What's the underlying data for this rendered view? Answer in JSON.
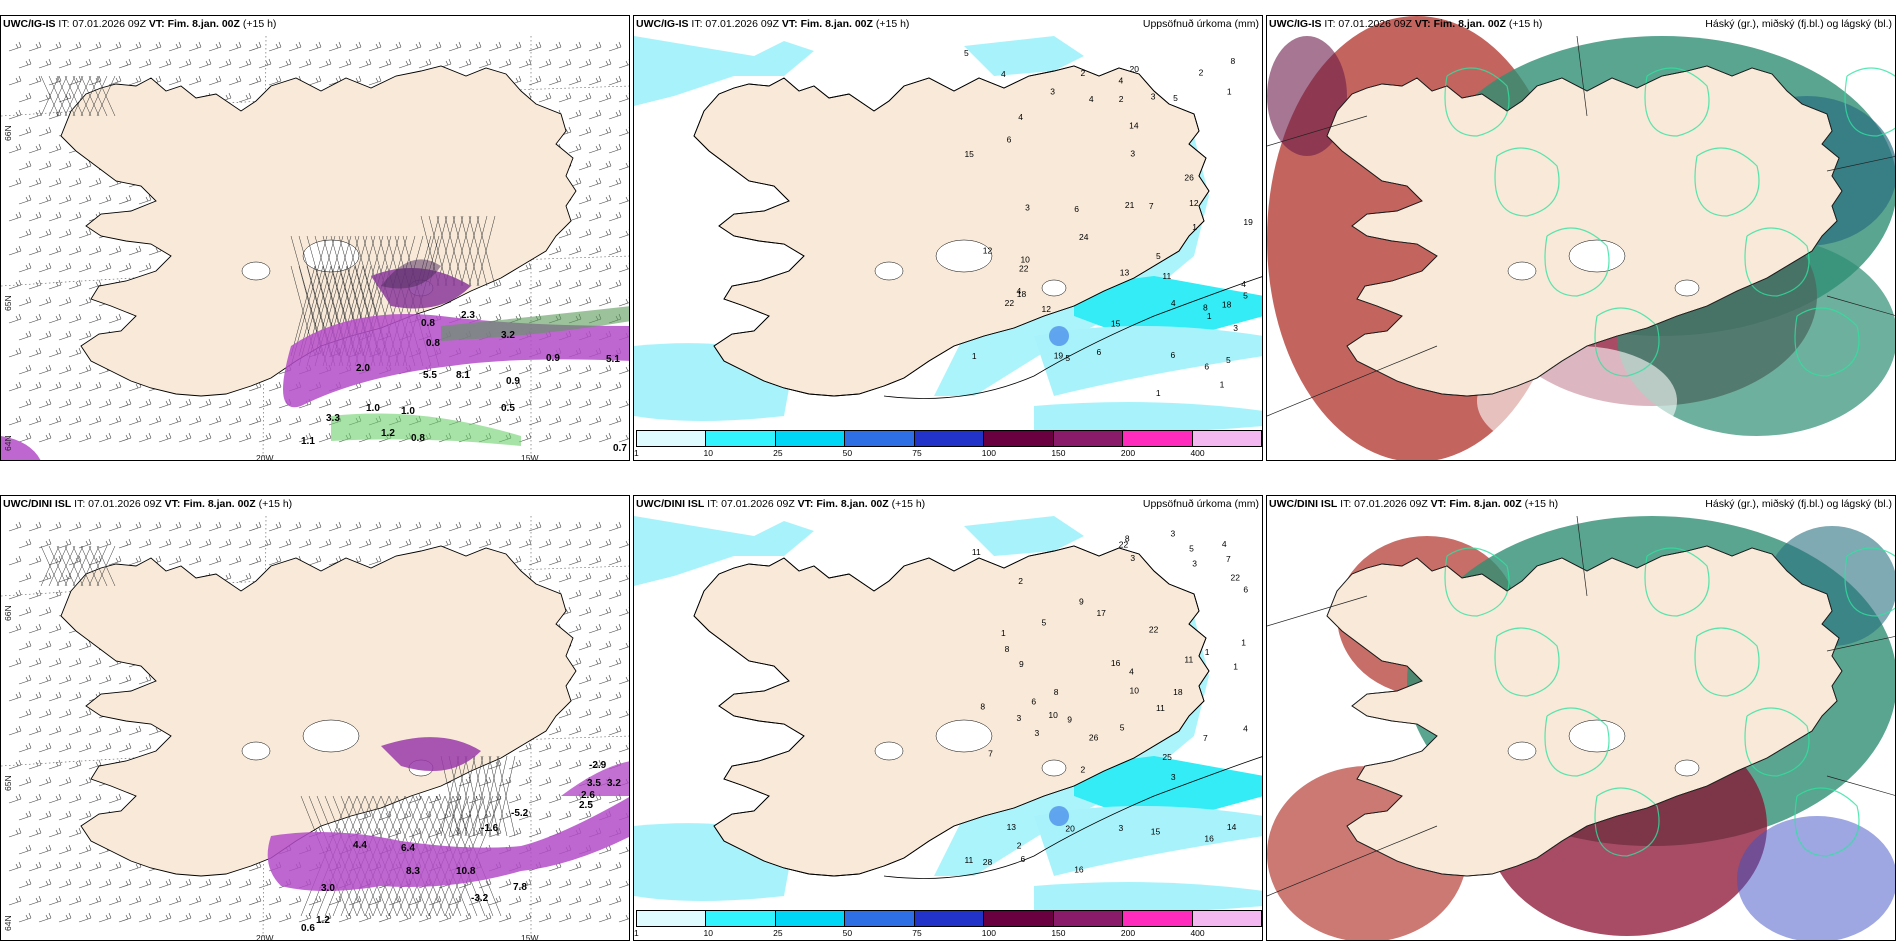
{
  "rows": [
    {
      "model": "UWC/IG-IS",
      "panels": [
        {
          "id": "wind",
          "model": "UWC/IG-IS",
          "it": "IT: 07.01.2026 09Z",
          "vt_label": "VT:",
          "vt_value": "Fim. 8.jan. 00Z",
          "lead": "(+15 h)",
          "right_title": "",
          "lat_labels": [
            "66N",
            "65N",
            "64N"
          ],
          "lon_labels": [
            "20W",
            "15W"
          ],
          "values": [
            "2.0",
            "2.3",
            "3.2",
            "5.5",
            "8.1",
            "3.3",
            "1.1",
            "0.8",
            "0.8",
            "1.0",
            "1.0",
            "0.5",
            "1.2",
            "0.8",
            "0.9",
            "0.9",
            "0.7",
            "5.1"
          ]
        },
        {
          "id": "precip",
          "model": "UWC/IG-IS",
          "it": "IT: 07.01.2026 09Z",
          "vt_label": "VT:",
          "vt_value": "Fim. 8.jan. 00Z",
          "lead": "(+15 h)",
          "right_title": "Uppsöfnuð úrkoma (mm)",
          "values": [
            "5",
            "1",
            "3",
            "1",
            "1",
            "2",
            "3",
            "4",
            "1",
            "4",
            "4",
            "4",
            "2",
            "3",
            "4",
            "3",
            "4",
            "5",
            "6",
            "12",
            "10",
            "5",
            "14",
            "18",
            "12",
            "13",
            "8",
            "19",
            "22",
            "26",
            "22",
            "18",
            "21",
            "24",
            "19",
            "20",
            "15",
            "15",
            "6",
            "5",
            "6",
            "7",
            "8",
            "5",
            "4",
            "12",
            "11",
            "2",
            "6",
            "6",
            "3",
            "1",
            "1",
            "5"
          ]
        },
        {
          "id": "cloud",
          "model": "UWC/IG-IS",
          "it": "IT: 07.01.2026 09Z",
          "vt_label": "VT:",
          "vt_value": "Fim. 8.jan. 00Z",
          "lead": "(+15 h)",
          "right_title": "Háský (gr.), miðský (fj.bl.) og lágský (bl.)"
        }
      ]
    },
    {
      "model": "UWC/DINI ISL",
      "panels": [
        {
          "id": "wind",
          "model": "UWC/DINI ISL",
          "it": "IT: 07.01.2026 09Z",
          "vt_label": "VT:",
          "vt_value": "Fim. 8.jan. 00Z",
          "lead": "(+15 h)",
          "right_title": "",
          "lat_labels": [
            "66N",
            "65N",
            "64N"
          ],
          "lon_labels": [
            "20W",
            "15W"
          ],
          "values": [
            "-2.9",
            "3.5",
            "3.2",
            "2.6",
            "2.5",
            "-5.2",
            "-1.6",
            "6.4",
            "8.3",
            "10.8",
            "4.4",
            "7.8",
            "3.0",
            "-3.2",
            "1.2",
            "0.6"
          ]
        },
        {
          "id": "precip",
          "model": "UWC/DINI ISL",
          "it": "IT: 07.01.2026 09Z",
          "vt_label": "VT:",
          "vt_value": "Fim. 8.jan. 00Z",
          "lead": "(+15 h)",
          "right_title": "Uppsöfnuð úrkoma (mm)",
          "values": [
            "3",
            "3",
            "1",
            "2",
            "1",
            "2",
            "1",
            "3",
            "3",
            "3",
            "4",
            "3",
            "5",
            "6",
            "7",
            "4",
            "4",
            "5",
            "5",
            "7",
            "6",
            "9",
            "11",
            "8",
            "2",
            "8",
            "9",
            "8",
            "10",
            "16",
            "11",
            "13",
            "18",
            "16",
            "22",
            "22",
            "20",
            "26",
            "28",
            "25",
            "22",
            "17",
            "16",
            "15",
            "14",
            "11",
            "11",
            "9",
            "10",
            "6",
            "7",
            "3",
            "8",
            "1"
          ]
        },
        {
          "id": "cloud",
          "model": "UWC/DINI ISL",
          "it": "IT: 07.01.2026 09Z",
          "vt_label": "VT:",
          "vt_value": "Fim. 8.jan. 00Z",
          "lead": "(+15 h)",
          "right_title": "Háský (gr.), miðský (fj.bl.) og lágský (bl.)"
        }
      ]
    }
  ],
  "colorbar": {
    "labels": [
      "1",
      "10",
      "25",
      "50",
      "75",
      "100",
      "150",
      "200",
      "400"
    ],
    "colors": [
      "#e0fbff",
      "#33f3ff",
      "#00d6f6",
      "#2f6fe6",
      "#2233c9",
      "#6a0040",
      "#8a1a6a",
      "#ff2bbd",
      "#f4b8f0"
    ]
  },
  "colors": {
    "land": "#f8e9d8",
    "precip_light": "#a8f3fb",
    "precip_mid": "#33ecf5",
    "purple": "#b44cc8",
    "green": "#6cd06c",
    "cloud_red": "#b03028",
    "cloud_teal": "#2f8f73",
    "cloud_blue": "#3e4fc5"
  }
}
